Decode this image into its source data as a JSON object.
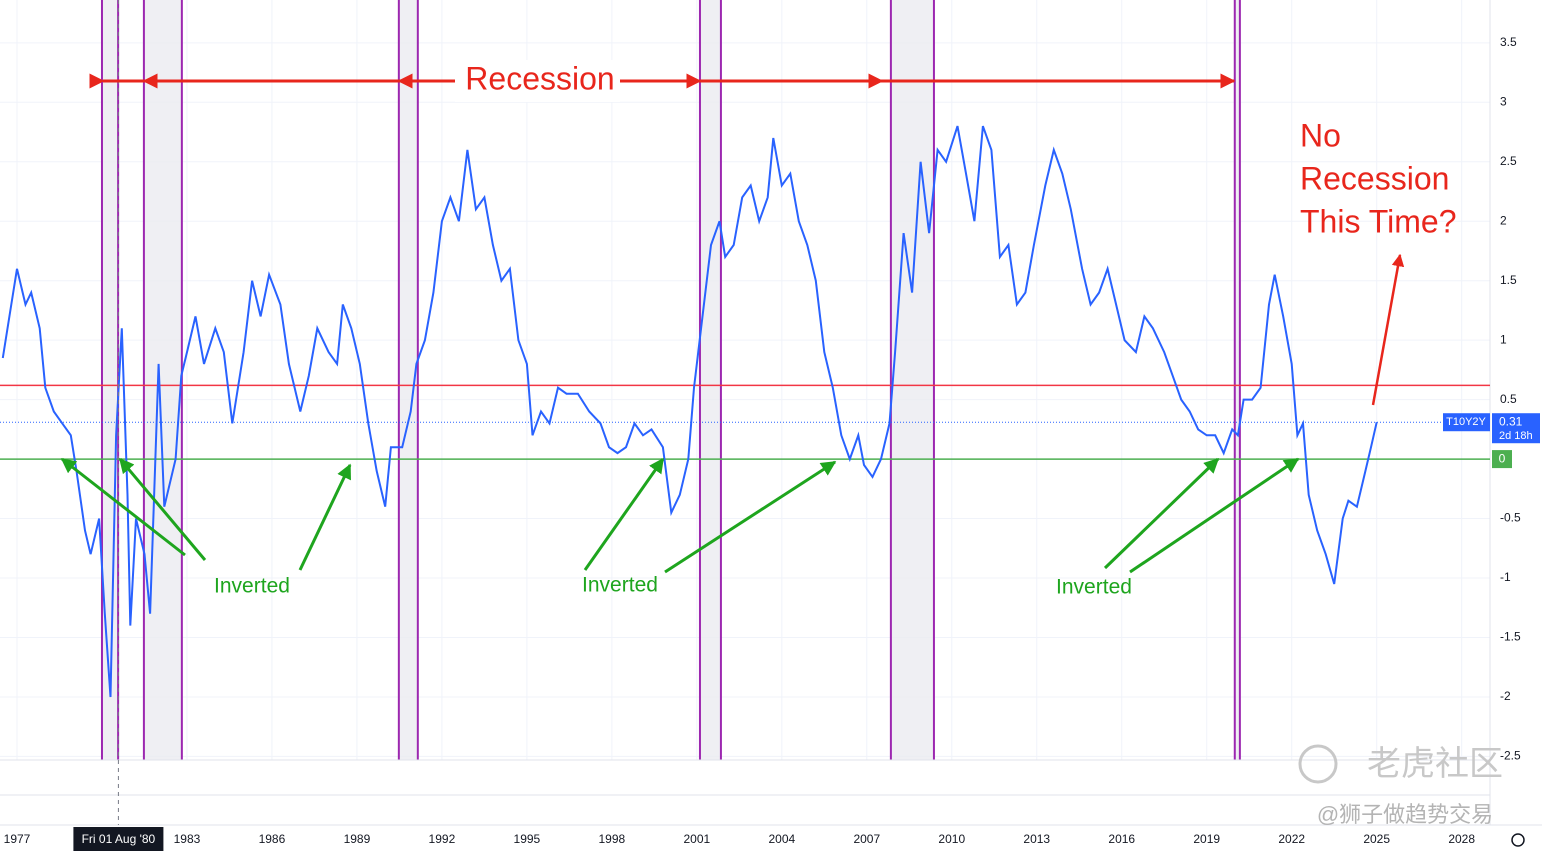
{
  "chart_data": {
    "type": "line",
    "series": [
      {
        "name": "T10Y2Y",
        "color": "#2962ff",
        "countdown": "2d 18h",
        "values": [
          0.85,
          1.3,
          1.6,
          1.3,
          1.4,
          1.1,
          0.6,
          0.4,
          0.3,
          0.2,
          -0.1,
          -0.6,
          -0.8,
          -0.5,
          -1.3,
          -2.0,
          0.2,
          1.1,
          -0.3,
          -1.4,
          -0.5,
          -0.8,
          -1.3,
          0.8,
          -0.4,
          0.0,
          0.7,
          0.9,
          1.2,
          0.8,
          1.1,
          0.9,
          0.3,
          0.9,
          1.5,
          1.2,
          1.55,
          1.3,
          0.8,
          0.4,
          0.7,
          1.1,
          0.9,
          0.8,
          1.3,
          1.1,
          0.8,
          0.3,
          -0.1,
          -0.4,
          0.1,
          0.1,
          0.4,
          0.8,
          1.0,
          1.4,
          2.0,
          2.2,
          2.0,
          2.6,
          2.1,
          2.2,
          1.8,
          1.5,
          1.6,
          1.0,
          0.8,
          0.2,
          0.4,
          0.3,
          0.6,
          0.55,
          0.55,
          0.4,
          0.3,
          0.1,
          0.05,
          0.1,
          0.3,
          0.2,
          0.25,
          0.1,
          -0.45,
          -0.3,
          0.0,
          0.6,
          1.2,
          1.8,
          2.0,
          1.7,
          1.8,
          2.2,
          2.3,
          2.0,
          2.2,
          2.7,
          2.3,
          2.4,
          2.0,
          1.8,
          1.5,
          0.9,
          0.6,
          0.2,
          0.0,
          0.2,
          -0.05,
          -0.15,
          0.0,
          0.3,
          0.9,
          1.9,
          1.4,
          2.5,
          1.9,
          2.6,
          2.5,
          2.8,
          2.4,
          2.0,
          2.8,
          2.6,
          1.7,
          1.8,
          1.3,
          1.4,
          1.8,
          2.3,
          2.6,
          2.4,
          2.1,
          1.6,
          1.3,
          1.4,
          1.6,
          1.3,
          1.0,
          0.9,
          1.2,
          1.1,
          0.9,
          0.7,
          0.5,
          0.4,
          0.25,
          0.2,
          0.2,
          0.05,
          0.25,
          0.2,
          0.5,
          0.5,
          0.6,
          1.3,
          1.55,
          1.2,
          0.8,
          0.2,
          0.3,
          -0.3,
          -0.6,
          -0.8,
          -1.05,
          -0.5,
          -0.35,
          -0.4,
          -0.1,
          0.1,
          0.31
        ]
      }
    ],
    "x": [
      1976.5,
      1976.8,
      1977.0,
      1977.3,
      1977.5,
      1977.8,
      1978.0,
      1978.3,
      1978.6,
      1978.9,
      1979.1,
      1979.4,
      1979.6,
      1979.9,
      1980.1,
      1980.3,
      1980.5,
      1980.7,
      1980.9,
      1981.0,
      1981.2,
      1981.5,
      1981.7,
      1982.0,
      1982.2,
      1982.6,
      1982.8,
      1983.0,
      1983.3,
      1983.6,
      1984.0,
      1984.3,
      1984.6,
      1985.0,
      1985.3,
      1985.6,
      1985.9,
      1986.3,
      1986.6,
      1987.0,
      1987.3,
      1987.6,
      1988.0,
      1988.3,
      1988.5,
      1988.8,
      1989.1,
      1989.4,
      1989.7,
      1990.0,
      1990.2,
      1990.6,
      1990.9,
      1991.1,
      1991.4,
      1991.7,
      1992.0,
      1992.3,
      1992.6,
      1992.9,
      1993.2,
      1993.5,
      1993.8,
      1994.1,
      1994.4,
      1994.7,
      1995.0,
      1995.2,
      1995.5,
      1995.8,
      1996.1,
      1996.4,
      1996.8,
      1997.2,
      1997.6,
      1997.9,
      1998.2,
      1998.5,
      1998.8,
      1999.1,
      1999.4,
      1999.8,
      2000.1,
      2000.4,
      2000.7,
      2000.9,
      2001.2,
      2001.5,
      2001.8,
      2002.0,
      2002.3,
      2002.6,
      2002.9,
      2003.2,
      2003.5,
      2003.7,
      2004.0,
      2004.3,
      2004.6,
      2004.9,
      2005.2,
      2005.5,
      2005.8,
      2006.1,
      2006.4,
      2006.7,
      2006.9,
      2007.2,
      2007.5,
      2007.8,
      2008.0,
      2008.3,
      2008.6,
      2008.9,
      2009.2,
      2009.5,
      2009.8,
      2010.2,
      2010.5,
      2010.8,
      2011.1,
      2011.4,
      2011.7,
      2012.0,
      2012.3,
      2012.6,
      2012.9,
      2013.3,
      2013.6,
      2013.9,
      2014.2,
      2014.6,
      2014.9,
      2015.2,
      2015.5,
      2015.8,
      2016.1,
      2016.5,
      2016.8,
      2017.1,
      2017.5,
      2017.8,
      2018.1,
      2018.4,
      2018.7,
      2019.0,
      2019.3,
      2019.6,
      2019.9,
      2020.1,
      2020.3,
      2020.6,
      2020.9,
      2021.2,
      2021.4,
      2021.7,
      2022.0,
      2022.2,
      2022.4,
      2022.6,
      2022.9,
      2023.2,
      2023.5,
      2023.8,
      2024.0,
      2024.3,
      2024.6,
      2024.8,
      2025.0
    ],
    "xlim": [
      1976.4,
      2029.0
    ],
    "xticks": [
      1977,
      1983,
      1986,
      1989,
      1992,
      1995,
      1998,
      2001,
      2004,
      2007,
      2010,
      2013,
      2016,
      2019,
      2022,
      2025,
      2028
    ],
    "ylim": [
      -2.53,
      3.86
    ],
    "yticks": [
      3.5,
      3,
      2.5,
      2,
      1.5,
      1,
      0.5,
      -0.5,
      -1,
      -1.5,
      -2,
      -2.5
    ],
    "grid": true,
    "recessions": [
      [
        1980.0,
        1980.57
      ],
      [
        1981.48,
        1982.82
      ],
      [
        1990.48,
        1991.15
      ],
      [
        2001.11,
        2001.85
      ],
      [
        2007.85,
        2009.37
      ],
      [
        2019.99,
        2020.17
      ]
    ],
    "reference_lines": [
      {
        "value": 0.62,
        "color": "#f23645"
      },
      {
        "value": 0,
        "color": "#4caf50"
      }
    ],
    "crosshair": {
      "x": 1980.58,
      "label": "Fri 01 Aug '80"
    },
    "annotations": {
      "recession": "Recession",
      "no_recession": [
        "No",
        "Recession",
        "This Time?"
      ],
      "inverted": [
        "Inverted",
        "Inverted",
        "Inverted"
      ]
    },
    "watermark": "老虎社区",
    "author": "@狮子做趋势交易"
  }
}
